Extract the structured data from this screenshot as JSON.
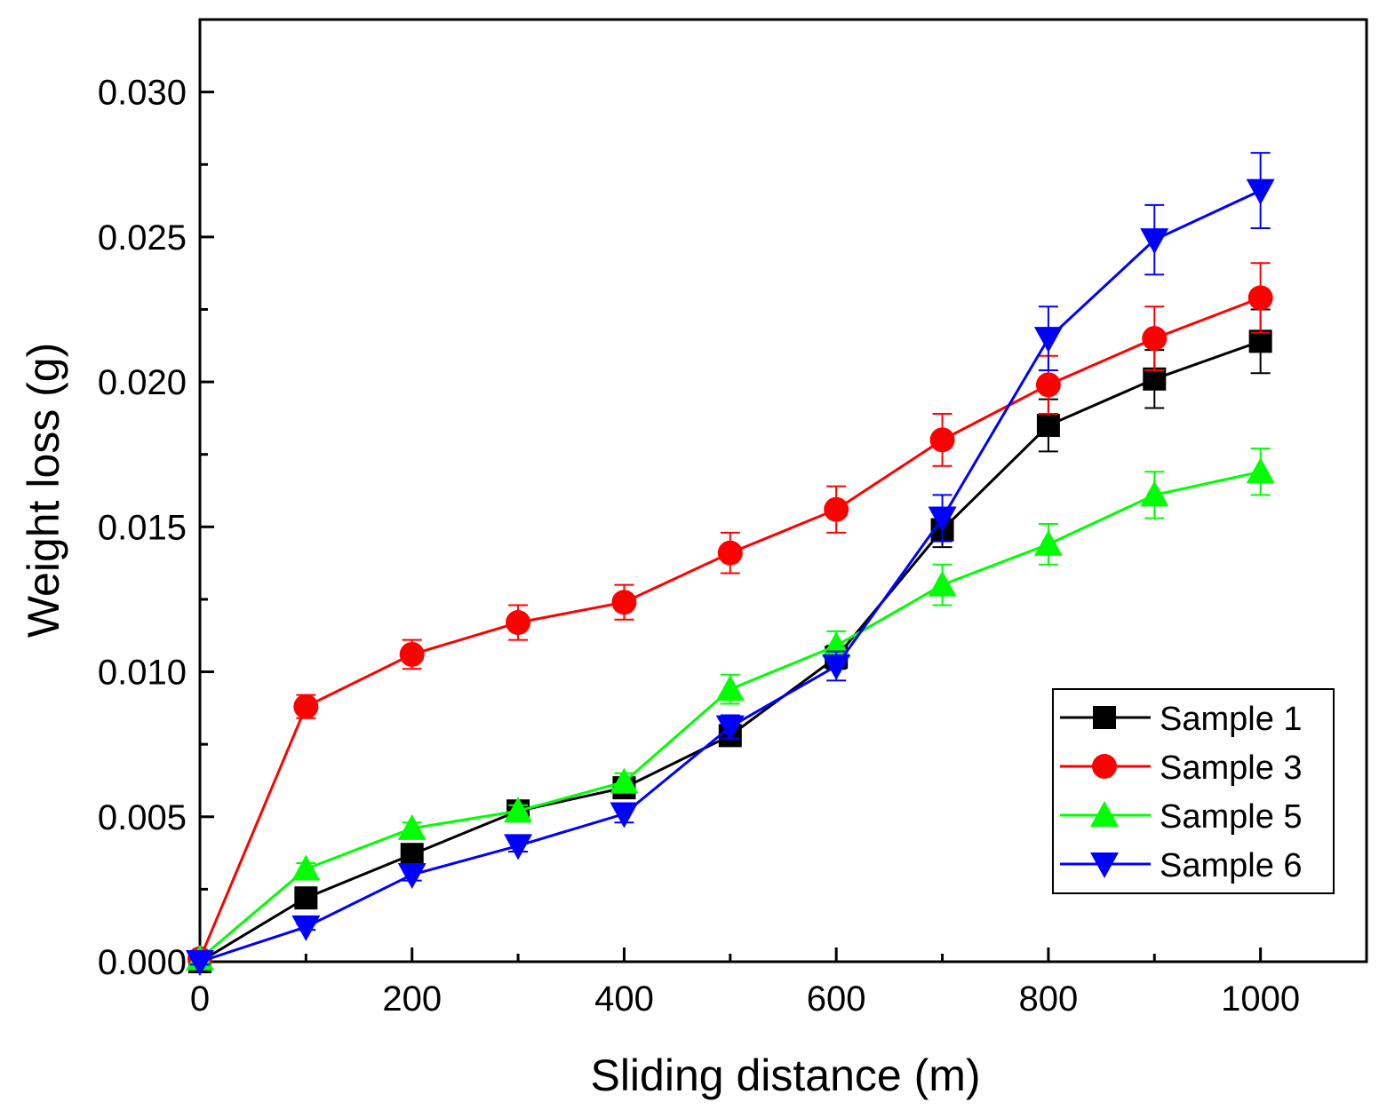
{
  "chart_data": {
    "type": "line",
    "title": "",
    "xlabel": "Sliding distance (m)",
    "ylabel": "Weight loss (g)",
    "xlim": [
      0,
      1100
    ],
    "ylim": [
      0,
      0.0325
    ],
    "x_ticks": [
      0,
      200,
      400,
      600,
      800,
      1000
    ],
    "x_tick_labels": [
      "0",
      "200",
      "400",
      "600",
      "800",
      "1000"
    ],
    "y_ticks": [
      0,
      0.005,
      0.01,
      0.015,
      0.02,
      0.025,
      0.03
    ],
    "y_tick_labels": [
      "0.000",
      "0.005",
      "0.010",
      "0.015",
      "0.020",
      "0.025",
      "0.030"
    ],
    "grid": false,
    "legend_position": "bottom-right",
    "x": [
      0,
      100,
      200,
      300,
      400,
      500,
      600,
      700,
      800,
      900,
      1000
    ],
    "series": [
      {
        "name": "Sample 1",
        "color": "#000000",
        "marker": "square",
        "values": [
          0.0,
          0.0022,
          0.0037,
          0.0052,
          0.006,
          0.0078,
          0.0105,
          0.0149,
          0.0185,
          0.0201,
          0.0214
        ],
        "errors": [
          0.0002,
          0.0002,
          0.0002,
          0.0002,
          0.0002,
          0.0003,
          0.0004,
          0.0006,
          0.0009,
          0.001,
          0.0011
        ]
      },
      {
        "name": "Sample 3",
        "color": "#ff0000",
        "marker": "circle",
        "values": [
          0.0001,
          0.0088,
          0.0106,
          0.0117,
          0.0124,
          0.0141,
          0.0156,
          0.018,
          0.0199,
          0.0215,
          0.0229
        ],
        "errors": [
          0.0001,
          0.0004,
          0.0005,
          0.0006,
          0.0006,
          0.0007,
          0.0008,
          0.0009,
          0.001,
          0.0011,
          0.0012
        ]
      },
      {
        "name": "Sample 5",
        "color": "#00ff00",
        "marker": "triangle-up",
        "values": [
          0.0001,
          0.0032,
          0.0046,
          0.0052,
          0.0062,
          0.0094,
          0.0109,
          0.013,
          0.0144,
          0.0161,
          0.0169
        ],
        "errors": [
          0.0001,
          0.0002,
          0.0002,
          0.0002,
          0.0003,
          0.0005,
          0.0005,
          0.0007,
          0.0007,
          0.0008,
          0.0008
        ]
      },
      {
        "name": "Sample 6",
        "color": "#0000ff",
        "marker": "triangle-down",
        "values": [
          0.0,
          0.0012,
          0.003,
          0.004,
          0.0051,
          0.0081,
          0.0102,
          0.0153,
          0.0215,
          0.0249,
          0.0266
        ],
        "errors": [
          0.0001,
          0.0001,
          0.0002,
          0.0002,
          0.0003,
          0.0004,
          0.0005,
          0.0008,
          0.0011,
          0.0012,
          0.0013
        ]
      }
    ]
  }
}
